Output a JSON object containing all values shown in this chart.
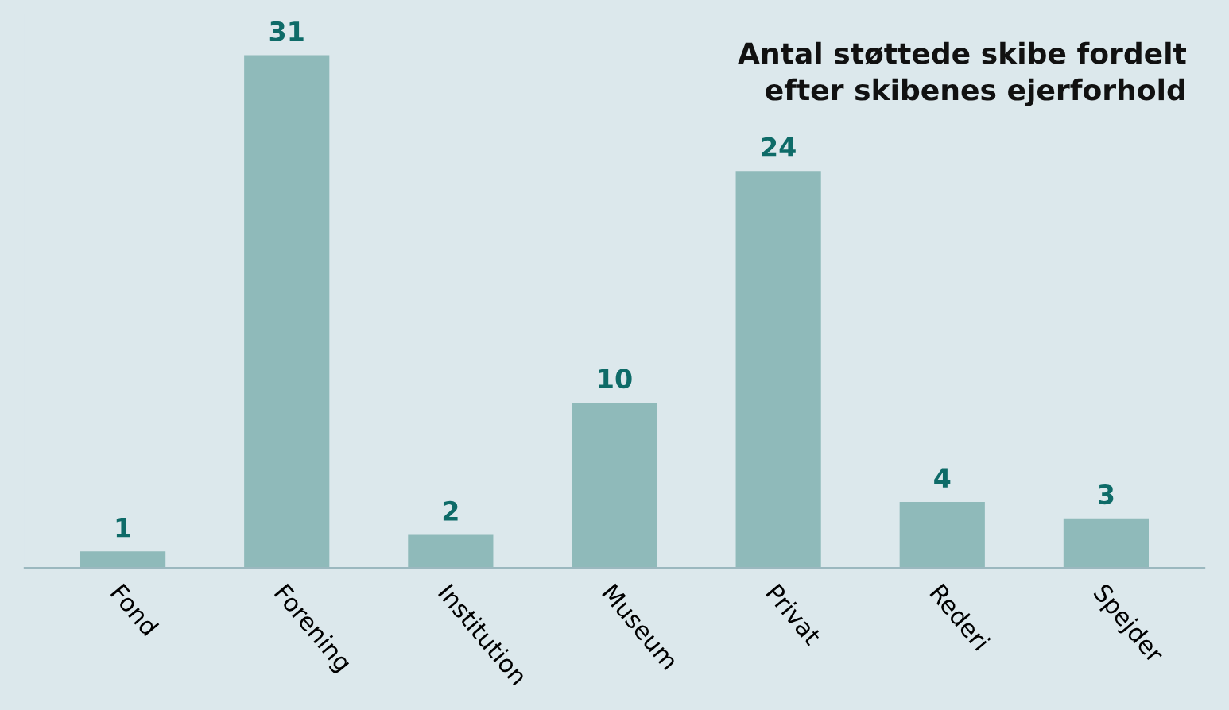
{
  "chart_data": {
    "type": "bar",
    "title": "Antal støttede skibe fordelt\nefter skibenes ejerforhold",
    "categories": [
      "Fond",
      "Forening",
      "Institution",
      "Museum",
      "Privat",
      "Rederi",
      "Spejder"
    ],
    "values": [
      1,
      31,
      2,
      10,
      24,
      4,
      3
    ],
    "color": "#8fbaba",
    "data_labels": true,
    "grid": false
  }
}
